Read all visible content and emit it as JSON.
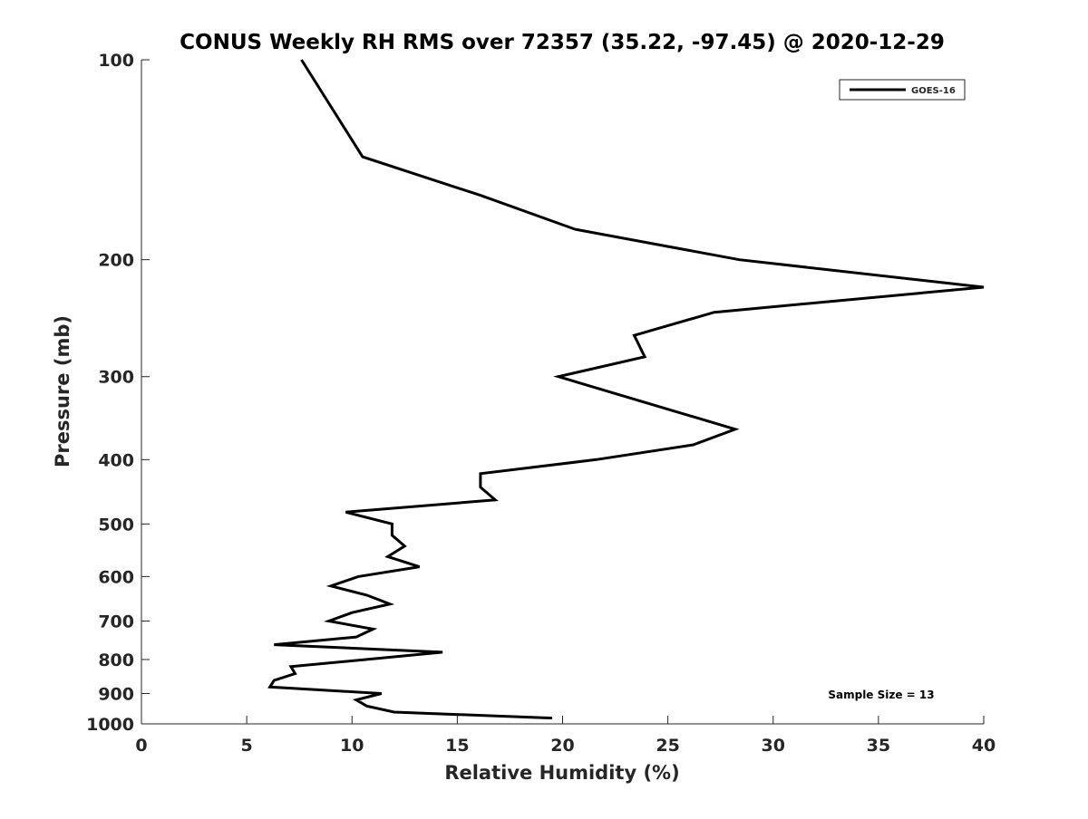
{
  "chart_data": {
    "type": "line",
    "title": "CONUS Weekly RH RMS over 72357 (35.22, -97.45) @ 2020-12-29",
    "xlabel": "Relative Humidity (%)",
    "ylabel": "Pressure (mb)",
    "xlim": [
      0,
      40
    ],
    "ylim": [
      100,
      1000
    ],
    "yscale": "log",
    "y_reversed": true,
    "grid": false,
    "x_ticks": [
      0,
      5,
      10,
      15,
      20,
      25,
      30,
      35,
      40
    ],
    "y_ticks": [
      100,
      200,
      300,
      400,
      500,
      600,
      700,
      800,
      900,
      1000
    ],
    "legend": {
      "placement": "top-right",
      "entries": [
        "GOES-16"
      ]
    },
    "annotation": "Sample Size = 13",
    "series": [
      {
        "name": "GOES-16",
        "color": "#000000",
        "points": [
          [
            7.6,
            100
          ],
          [
            10.5,
            140
          ],
          [
            16.1,
            160
          ],
          [
            20.6,
            180
          ],
          [
            28.4,
            200
          ],
          [
            40.0,
            220
          ],
          [
            27.2,
            240
          ],
          [
            23.4,
            260
          ],
          [
            23.9,
            280
          ],
          [
            19.8,
            300
          ],
          [
            28.2,
            360
          ],
          [
            26.2,
            380
          ],
          [
            21.6,
            400
          ],
          [
            16.1,
            420
          ],
          [
            16.1,
            440
          ],
          [
            16.8,
            460
          ],
          [
            9.7,
            480
          ],
          [
            11.9,
            500
          ],
          [
            11.9,
            520
          ],
          [
            12.5,
            540
          ],
          [
            11.7,
            560
          ],
          [
            13.2,
            580
          ],
          [
            10.3,
            600
          ],
          [
            9.0,
            620
          ],
          [
            10.7,
            640
          ],
          [
            11.8,
            660
          ],
          [
            10.0,
            680
          ],
          [
            8.9,
            700
          ],
          [
            11.0,
            720
          ],
          [
            10.2,
            740
          ],
          [
            6.3,
            760
          ],
          [
            14.3,
            780
          ],
          [
            7.1,
            820
          ],
          [
            7.3,
            840
          ],
          [
            6.3,
            860
          ],
          [
            6.1,
            880
          ],
          [
            11.4,
            900
          ],
          [
            10.2,
            920
          ],
          [
            10.7,
            940
          ],
          [
            12.0,
            960
          ],
          [
            19.5,
            980
          ]
        ]
      }
    ]
  }
}
